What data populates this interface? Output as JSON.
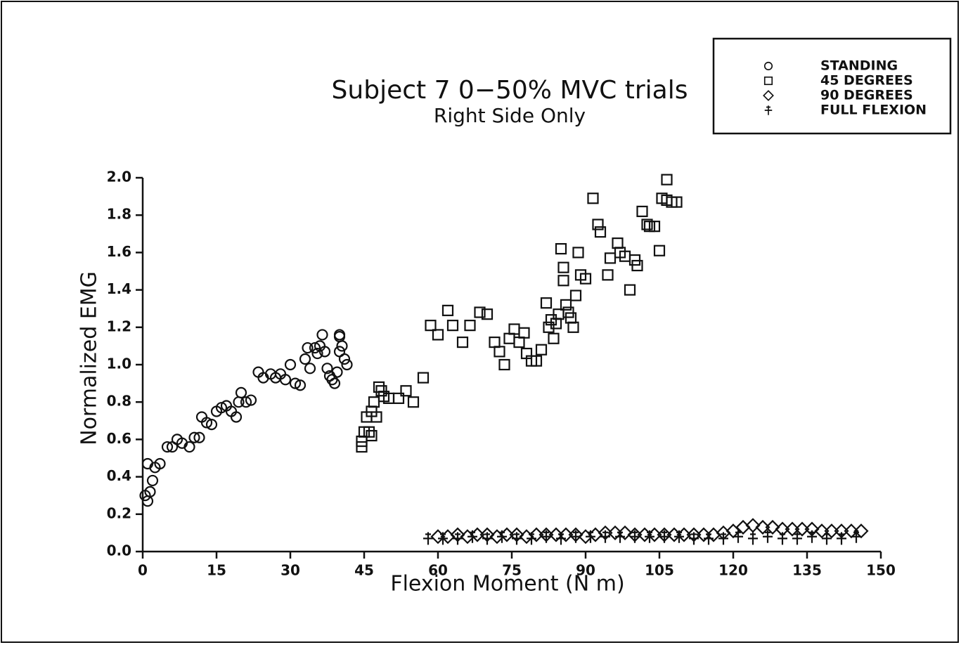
{
  "chart_data": {
    "type": "scatter",
    "title": "Subject 7  0−50% MVC trials",
    "subtitle": "Right Side Only",
    "x_label": "Flexion Moment (N m)",
    "y_label": "Normalized EMG",
    "xlim": [
      0,
      150
    ],
    "xticks": [
      0,
      15,
      30,
      45,
      60,
      75,
      90,
      105,
      120,
      135,
      150
    ],
    "ylim": [
      0,
      2
    ],
    "yticks": [
      {
        "value": 0,
        "label": "0.0"
      },
      0.2,
      0.4,
      0.6,
      0.8,
      {
        "value": 1,
        "label": "1.0"
      },
      1.2,
      1.4,
      1.6,
      1.8,
      {
        "value": 2,
        "label": "2.0"
      }
    ],
    "grid": false,
    "legend": "top-right",
    "series": [
      {
        "name": "STANDING",
        "marker": "circle",
        "color": "#111111",
        "x": [
          0.5,
          1,
          1.5,
          2,
          2.5,
          1,
          3.5,
          5,
          6,
          7,
          8,
          9.5,
          10.5,
          11.5,
          12,
          13,
          14,
          15,
          16,
          17,
          18,
          19,
          19.5,
          20,
          21,
          22,
          23.5,
          24.5,
          26,
          27,
          28,
          29,
          30,
          31,
          32,
          33,
          33.5,
          34,
          35,
          35.5,
          36,
          36.5,
          37,
          37.5,
          38,
          38.5,
          39,
          39.5,
          40,
          40,
          40.5,
          41,
          41.5,
          40
        ],
        "values": [
          0.3,
          0.27,
          0.32,
          0.38,
          0.45,
          0.47,
          0.47,
          0.56,
          0.56,
          0.6,
          0.58,
          0.56,
          0.61,
          0.61,
          0.72,
          0.69,
          0.68,
          0.75,
          0.77,
          0.78,
          0.75,
          0.72,
          0.8,
          0.85,
          0.8,
          0.81,
          0.96,
          0.93,
          0.95,
          0.93,
          0.95,
          0.92,
          1.0,
          0.9,
          0.89,
          1.03,
          1.09,
          0.98,
          1.09,
          1.06,
          1.1,
          1.16,
          1.07,
          0.98,
          0.94,
          0.92,
          0.9,
          0.96,
          1.16,
          1.15,
          1.1,
          1.03,
          1.0,
          1.07
        ]
      },
      {
        "name": "45 DEGREES",
        "marker": "square",
        "color": "#111111",
        "x": [
          44.5,
          44.5,
          45,
          45.5,
          46,
          46.5,
          46.5,
          47,
          47.5,
          48,
          48.5,
          49,
          50,
          52,
          53.5,
          55,
          57,
          58.5,
          60,
          62,
          63,
          65,
          66.5,
          68.5,
          70,
          71.5,
          72.5,
          73.5,
          74.5,
          75.5,
          76.5,
          77.5,
          78,
          79,
          80,
          81,
          82,
          82.5,
          83,
          83.5,
          84,
          84.5,
          85,
          85.5,
          85.5,
          86,
          86.5,
          87,
          87.5,
          88,
          88.5,
          89,
          90,
          91.5,
          92.5,
          93,
          94.5,
          95,
          96.5,
          97,
          98,
          99,
          100,
          100.5,
          101.5,
          102.5,
          103,
          104,
          105,
          105.5,
          106.5,
          106.5,
          107.5,
          108.5
        ],
        "values": [
          0.56,
          0.59,
          0.64,
          0.72,
          0.64,
          0.62,
          0.75,
          0.8,
          0.72,
          0.88,
          0.86,
          0.83,
          0.82,
          0.82,
          0.86,
          0.8,
          0.93,
          1.21,
          1.16,
          1.29,
          1.21,
          1.12,
          1.21,
          1.28,
          1.27,
          1.12,
          1.07,
          1.0,
          1.14,
          1.19,
          1.12,
          1.17,
          1.06,
          1.02,
          1.02,
          1.08,
          1.33,
          1.2,
          1.24,
          1.14,
          1.22,
          1.27,
          1.62,
          1.52,
          1.45,
          1.32,
          1.28,
          1.25,
          1.2,
          1.37,
          1.6,
          1.48,
          1.46,
          1.89,
          1.75,
          1.71,
          1.48,
          1.57,
          1.65,
          1.6,
          1.58,
          1.4,
          1.56,
          1.53,
          1.82,
          1.75,
          1.74,
          1.74,
          1.61,
          1.89,
          1.99,
          1.88,
          1.87,
          1.87
        ]
      },
      {
        "name": "90 DEGREES",
        "marker": "diamond",
        "color": "#111111",
        "x": [
          60,
          62,
          64,
          66,
          68,
          70,
          72,
          74,
          76,
          78,
          80,
          82,
          84,
          86,
          88,
          90,
          92,
          94,
          96,
          98,
          100,
          102,
          104,
          106,
          108,
          110,
          112,
          114,
          116,
          118,
          120,
          122,
          124,
          126,
          128,
          130,
          132,
          134,
          136,
          138,
          140,
          142,
          144,
          146
        ],
        "values": [
          0.08,
          0.08,
          0.09,
          0.08,
          0.09,
          0.09,
          0.08,
          0.09,
          0.09,
          0.08,
          0.09,
          0.09,
          0.09,
          0.09,
          0.09,
          0.08,
          0.09,
          0.1,
          0.1,
          0.1,
          0.09,
          0.09,
          0.09,
          0.09,
          0.09,
          0.09,
          0.09,
          0.09,
          0.09,
          0.1,
          0.11,
          0.13,
          0.14,
          0.13,
          0.13,
          0.12,
          0.12,
          0.12,
          0.12,
          0.11,
          0.11,
          0.11,
          0.11,
          0.11
        ]
      },
      {
        "name": "FULL FLEXION",
        "marker": "cross",
        "color": "#111111",
        "x": [
          58,
          61,
          64,
          67,
          70,
          73,
          76,
          79,
          82,
          85,
          88,
          91,
          94,
          97,
          100,
          103,
          106,
          109,
          112,
          115,
          118,
          121,
          124,
          127,
          130,
          133,
          136,
          139,
          142,
          145
        ],
        "values": [
          0.07,
          0.07,
          0.07,
          0.08,
          0.07,
          0.08,
          0.07,
          0.07,
          0.08,
          0.07,
          0.08,
          0.08,
          0.08,
          0.08,
          0.08,
          0.08,
          0.08,
          0.08,
          0.07,
          0.07,
          0.07,
          0.08,
          0.07,
          0.08,
          0.07,
          0.07,
          0.08,
          0.07,
          0.07,
          0.08
        ]
      }
    ]
  }
}
